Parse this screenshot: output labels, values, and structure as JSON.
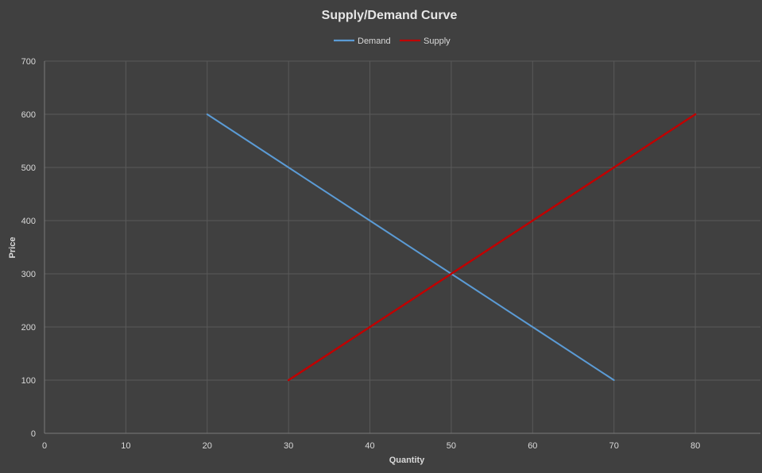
{
  "chart_data": {
    "type": "line",
    "title": "Supply/Demand Curve",
    "xlabel": "Quantity",
    "ylabel": "Price",
    "xlim": [
      0,
      88
    ],
    "ylim": [
      0,
      700
    ],
    "x_ticks": [
      0,
      10,
      20,
      30,
      40,
      50,
      60,
      70,
      80
    ],
    "y_ticks": [
      0,
      100,
      200,
      300,
      400,
      500,
      600,
      700
    ],
    "grid": true,
    "legend_position": "top-center",
    "series": [
      {
        "name": "Demand",
        "color": "#5b9bd5",
        "points": [
          [
            20,
            600
          ],
          [
            30,
            500
          ],
          [
            40,
            400
          ],
          [
            50,
            300
          ],
          [
            60,
            200
          ],
          [
            70,
            100
          ]
        ]
      },
      {
        "name": "Supply",
        "color": "#c00000",
        "points": [
          [
            30,
            100
          ],
          [
            40,
            200
          ],
          [
            50,
            300
          ],
          [
            60,
            400
          ],
          [
            70,
            500
          ],
          [
            80,
            600
          ]
        ]
      }
    ]
  },
  "colors": {
    "background": "#404040",
    "grid": "#5a5a5a",
    "text": "#d9d9d9"
  }
}
